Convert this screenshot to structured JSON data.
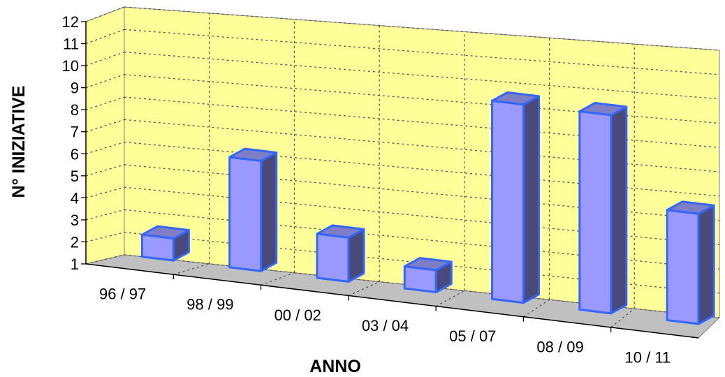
{
  "chart_data": {
    "type": "bar",
    "style": "3d-column",
    "title": "",
    "xlabel": "ANNO",
    "ylabel": "N° INIZIATIVE",
    "categories": [
      "96 / 97",
      "98 / 99",
      "00 / 02",
      "03 / 04",
      "05 / 07",
      "08 / 09",
      "10 / 11"
    ],
    "values": [
      2,
      6,
      3,
      2,
      10,
      10,
      6
    ],
    "yticks": [
      1,
      2,
      3,
      4,
      5,
      6,
      7,
      8,
      9,
      10,
      11,
      12
    ],
    "ylim": [
      1,
      12
    ],
    "grid": true,
    "legend": "none",
    "colors": {
      "bar_front": "#9999ff",
      "bar_side": "#4a4a7a",
      "bar_top": "#7e7ec6",
      "bar_edge": "#3366ff",
      "back_wall": "#ffff99",
      "floor": "#c0c0c0"
    }
  }
}
